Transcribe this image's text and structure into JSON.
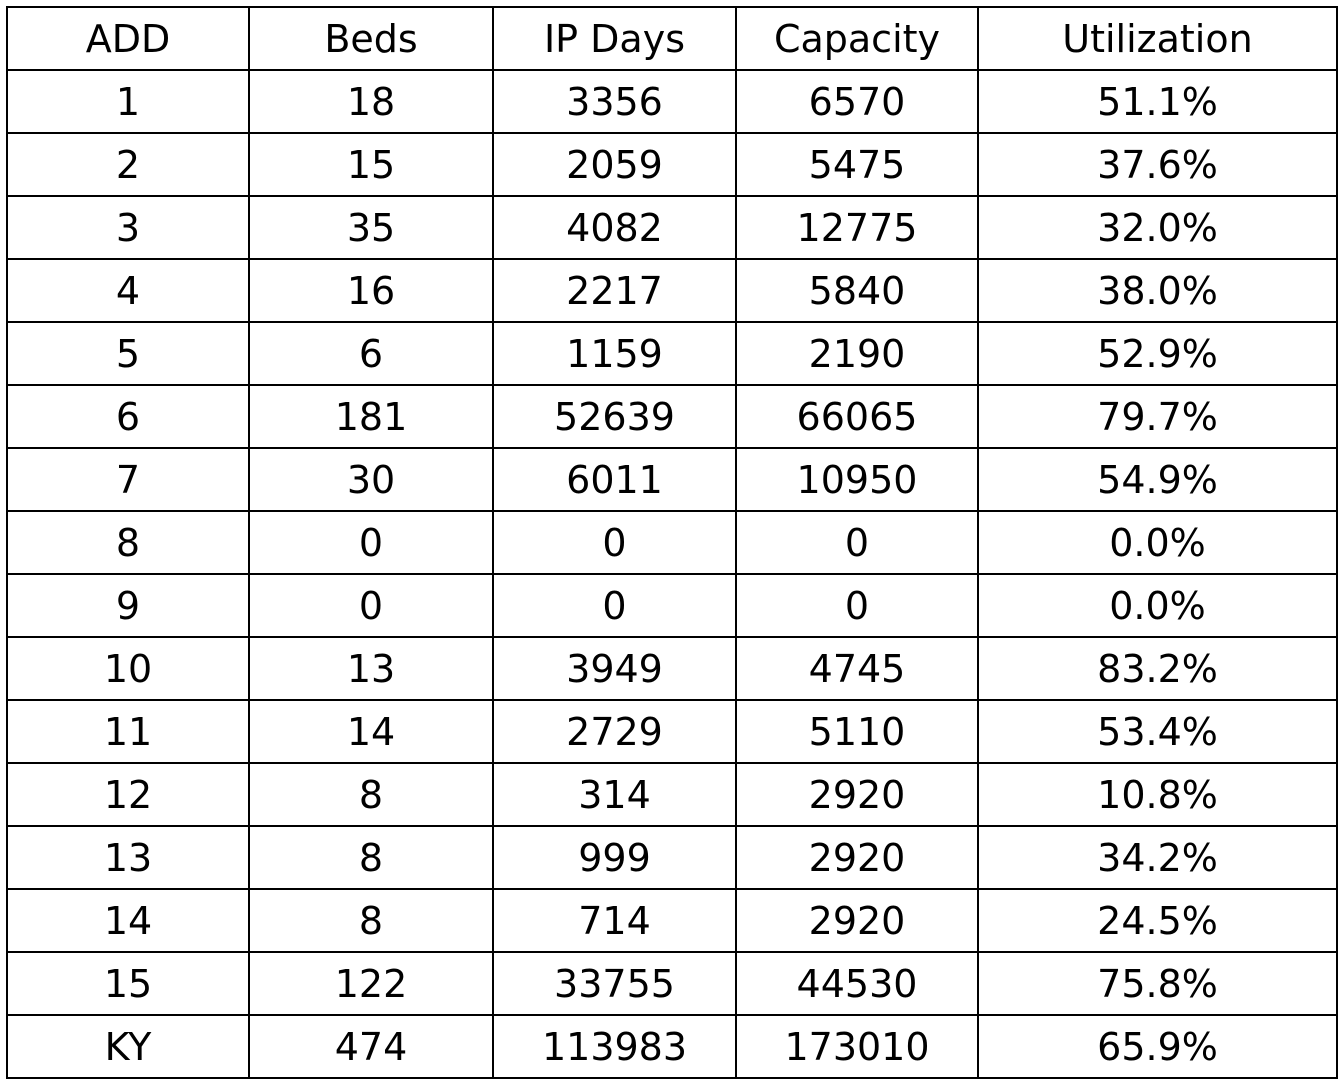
{
  "table": {
    "headers": [
      "ADD",
      "Beds",
      "IP Days",
      "Capacity",
      "Utilization"
    ],
    "rows": [
      [
        "1",
        "18",
        "3356",
        "6570",
        "51.1%"
      ],
      [
        "2",
        "15",
        "2059",
        "5475",
        "37.6%"
      ],
      [
        "3",
        "35",
        "4082",
        "12775",
        "32.0%"
      ],
      [
        "4",
        "16",
        "2217",
        "5840",
        "38.0%"
      ],
      [
        "5",
        "6",
        "1159",
        "2190",
        "52.9%"
      ],
      [
        "6",
        "181",
        "52639",
        "66065",
        "79.7%"
      ],
      [
        "7",
        "30",
        "6011",
        "10950",
        "54.9%"
      ],
      [
        "8",
        "0",
        "0",
        "0",
        "0.0%"
      ],
      [
        "9",
        "0",
        "0",
        "0",
        "0.0%"
      ],
      [
        "10",
        "13",
        "3949",
        "4745",
        "83.2%"
      ],
      [
        "11",
        "14",
        "2729",
        "5110",
        "53.4%"
      ],
      [
        "12",
        "8",
        "314",
        "2920",
        "10.8%"
      ],
      [
        "13",
        "8",
        "999",
        "2920",
        "34.2%"
      ],
      [
        "14",
        "8",
        "714",
        "2920",
        "24.5%"
      ],
      [
        "15",
        "122",
        "33755",
        "44530",
        "75.8%"
      ],
      [
        "KY",
        "474",
        "113983",
        "173010",
        "65.9%"
      ]
    ]
  }
}
